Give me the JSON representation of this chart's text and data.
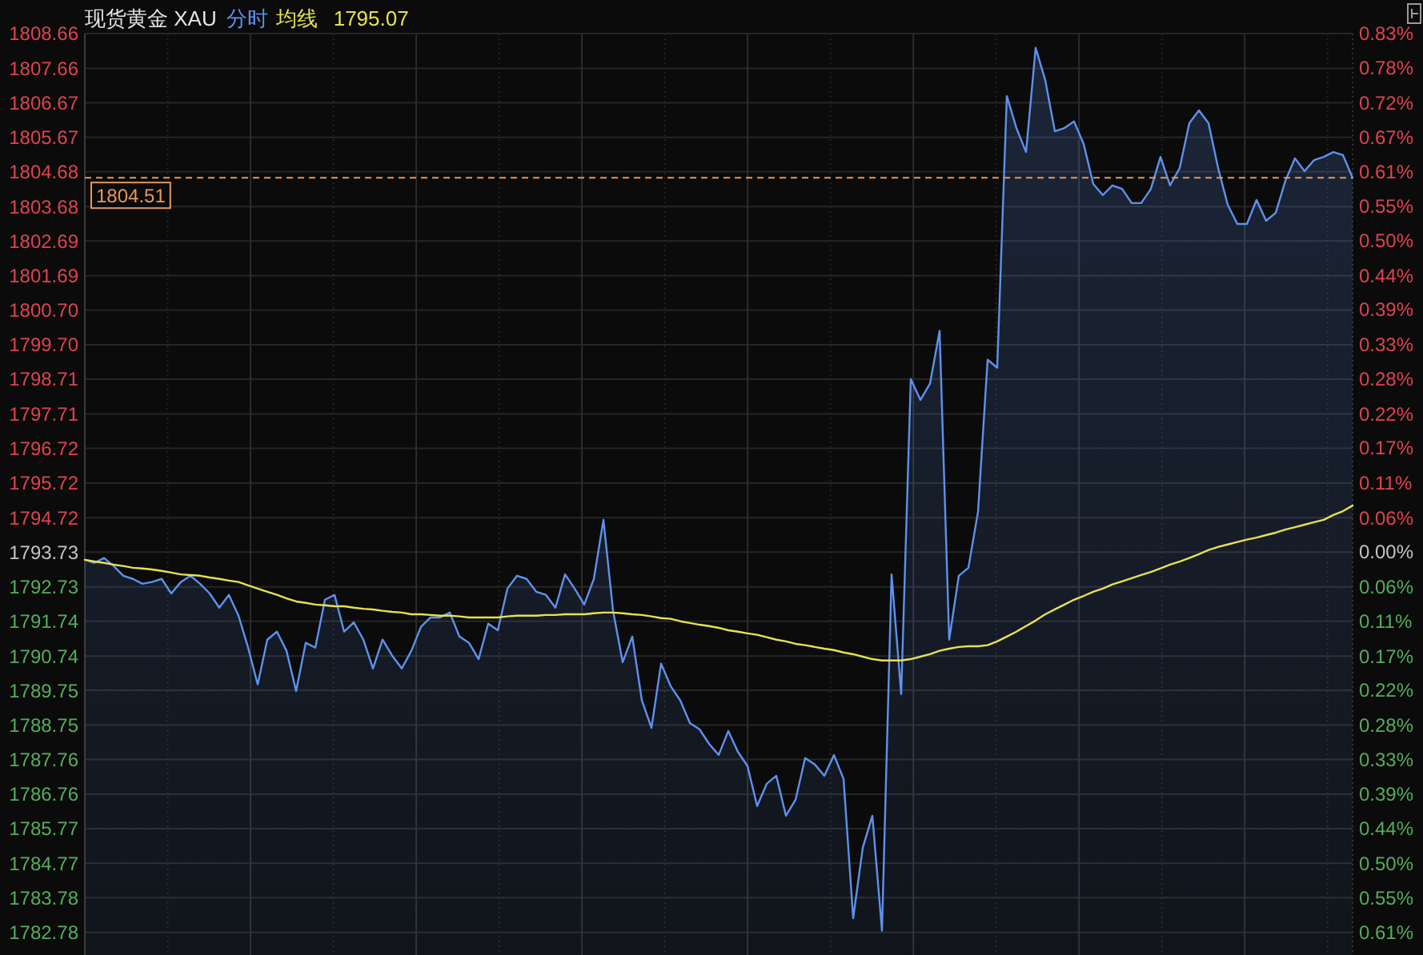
{
  "chart_data": {
    "type": "area",
    "title": "现货黄金 XAU",
    "categories": [
      null,
      null,
      null,
      null,
      null,
      null,
      null,
      null,
      null,
      null,
      null,
      null,
      null,
      null,
      null,
      null,
      null,
      null,
      null,
      null,
      null,
      null,
      null,
      null,
      null,
      null,
      null,
      null,
      null,
      null,
      null,
      null,
      null,
      null,
      null,
      null,
      null,
      null,
      null,
      null,
      null,
      null,
      null,
      null,
      null,
      null,
      null,
      null,
      null,
      null,
      null,
      null,
      null,
      null,
      null,
      null,
      null,
      null,
      null,
      null,
      null,
      null,
      null,
      null,
      null,
      null,
      null,
      null,
      null,
      null,
      null,
      null,
      null,
      null,
      null,
      null,
      null,
      null,
      null,
      null,
      null,
      null,
      null,
      null,
      null,
      null,
      null,
      null,
      null,
      null,
      null,
      null,
      null,
      null,
      null,
      null,
      null,
      null,
      null,
      null,
      null,
      null,
      null,
      null,
      null,
      null,
      null,
      null,
      null,
      null,
      null,
      null,
      null,
      null,
      null,
      null,
      null,
      null,
      null,
      null,
      null,
      null,
      null,
      null,
      null,
      null,
      null,
      null,
      null,
      null,
      null,
      null,
      null
    ],
    "series": [
      {
        "name": "分时",
        "type": "area",
        "color": "#5e92ee",
        "values": [
          1793.51,
          1793.42,
          1793.56,
          1793.33,
          1793.05,
          1792.96,
          1792.82,
          1792.87,
          1792.96,
          1792.54,
          1792.87,
          1793.05,
          1792.82,
          1792.54,
          1792.13,
          1792.5,
          1791.9,
          1790.98,
          1789.92,
          1791.21,
          1791.44,
          1790.89,
          1789.73,
          1791.12,
          1790.98,
          1792.36,
          1792.5,
          1791.44,
          1791.71,
          1791.21,
          1790.38,
          1791.21,
          1790.75,
          1790.38,
          1790.89,
          1791.58,
          1791.85,
          1791.85,
          1791.99,
          1791.3,
          1791.12,
          1790.65,
          1791.67,
          1791.48,
          1792.68,
          1793.05,
          1792.96,
          1792.59,
          1792.5,
          1792.13,
          1793.09,
          1792.68,
          1792.22,
          1792.96,
          1794.66,
          1792.04,
          1790.56,
          1791.3,
          1789.46,
          1788.67,
          1790.52,
          1789.87,
          1789.46,
          1788.81,
          1788.63,
          1788.21,
          1787.89,
          1788.58,
          1787.98,
          1787.57,
          1786.42,
          1787.06,
          1787.29,
          1786.14,
          1786.6,
          1787.8,
          1787.62,
          1787.29,
          1787.89,
          1787.2,
          1783.19,
          1785.22,
          1786.14,
          1782.83,
          1793.09,
          1789.64,
          1798.71,
          1798.11,
          1798.58,
          1800.1,
          1791.21,
          1793.05,
          1793.28,
          1794.89,
          1799.27,
          1799.04,
          1806.86,
          1805.94,
          1805.25,
          1808.25,
          1807.32,
          1805.85,
          1805.94,
          1806.13,
          1805.48,
          1804.33,
          1804.01,
          1804.29,
          1804.19,
          1803.78,
          1803.78,
          1804.19,
          1805.11,
          1804.29,
          1804.79,
          1806.08,
          1806.45,
          1806.08,
          1804.79,
          1803.73,
          1803.18,
          1803.18,
          1803.87,
          1803.27,
          1803.5,
          1804.42,
          1805.07,
          1804.7,
          1805.02,
          1805.11,
          1805.25,
          1805.16,
          1804.51
        ]
      },
      {
        "name": "均线",
        "type": "line",
        "color": "#e8e24e",
        "values": [
          1793.51,
          1793.46,
          1793.42,
          1793.37,
          1793.33,
          1793.28,
          1793.26,
          1793.23,
          1793.19,
          1793.14,
          1793.09,
          1793.07,
          1793.05,
          1793.0,
          1792.96,
          1792.91,
          1792.87,
          1792.77,
          1792.68,
          1792.59,
          1792.5,
          1792.4,
          1792.31,
          1792.27,
          1792.22,
          1792.2,
          1792.17,
          1792.17,
          1792.13,
          1792.1,
          1792.08,
          1792.04,
          1792.01,
          1791.99,
          1791.94,
          1791.94,
          1791.92,
          1791.9,
          1791.9,
          1791.88,
          1791.85,
          1791.85,
          1791.85,
          1791.85,
          1791.88,
          1791.9,
          1791.9,
          1791.9,
          1791.92,
          1791.92,
          1791.94,
          1791.94,
          1791.94,
          1791.97,
          1791.99,
          1791.99,
          1791.97,
          1791.94,
          1791.92,
          1791.88,
          1791.83,
          1791.81,
          1791.74,
          1791.69,
          1791.64,
          1791.6,
          1791.55,
          1791.48,
          1791.44,
          1791.39,
          1791.35,
          1791.28,
          1791.21,
          1791.16,
          1791.09,
          1791.05,
          1791.0,
          1790.95,
          1790.91,
          1790.84,
          1790.79,
          1790.72,
          1790.65,
          1790.61,
          1790.61,
          1790.61,
          1790.65,
          1790.72,
          1790.79,
          1790.89,
          1790.95,
          1791.0,
          1791.02,
          1791.02,
          1791.05,
          1791.16,
          1791.3,
          1791.44,
          1791.6,
          1791.76,
          1791.94,
          1792.08,
          1792.22,
          1792.36,
          1792.47,
          1792.59,
          1792.68,
          1792.8,
          1792.89,
          1792.98,
          1793.07,
          1793.16,
          1793.26,
          1793.37,
          1793.46,
          1793.56,
          1793.67,
          1793.79,
          1793.88,
          1793.95,
          1794.02,
          1794.09,
          1794.15,
          1794.22,
          1794.29,
          1794.38,
          1794.45,
          1794.52,
          1794.59,
          1794.66,
          1794.8,
          1794.91,
          1795.07
        ]
      }
    ],
    "annotations": [
      "1795.07"
    ],
    "ylim": [
      1782.13,
      1808.66
    ],
    "yticks": [
      1782.78,
      1783.78,
      1784.77,
      1785.77,
      1786.76,
      1787.76,
      1788.75,
      1789.75,
      1790.74,
      1791.74,
      1792.73,
      1793.73,
      1794.72,
      1795.72,
      1796.72,
      1797.71,
      1798.71,
      {
        "value": 1799.7,
        "label": "1799.70"
      },
      {
        "value": 1800.7,
        "label": "1800.70"
      },
      1801.69,
      1802.69,
      1803.68,
      1804.68,
      1805.67,
      1806.67,
      1807.66,
      1808.66
    ],
    "y2lim": [
      -0.647,
      0.832
    ],
    "y2ticks": [
      {
        "value": -0.611,
        "label": "0.61%"
      },
      {
        "value": -0.555,
        "label": "0.55%"
      },
      {
        "value": -0.5,
        "label": "0.50%"
      },
      {
        "value": -0.444,
        "label": "0.44%"
      },
      {
        "value": -0.389,
        "label": "0.39%"
      },
      {
        "value": -0.333,
        "label": "0.33%"
      },
      {
        "value": -0.278,
        "label": "0.28%"
      },
      {
        "value": -0.222,
        "label": "0.22%"
      },
      {
        "value": -0.167,
        "label": "0.17%"
      },
      {
        "value": -0.111,
        "label": "0.11%"
      },
      {
        "value": -0.056,
        "label": "0.06%"
      },
      {
        "value": 0,
        "label": "0.00%"
      },
      {
        "value": 0.055,
        "label": "0.06%"
      },
      {
        "value": 0.111,
        "label": "0.11%"
      },
      {
        "value": 0.167,
        "label": "0.17%"
      },
      {
        "value": 0.222,
        "label": "0.22%"
      },
      {
        "value": 0.278,
        "label": "0.28%"
      },
      {
        "value": 0.333,
        "label": "0.33%"
      },
      {
        "value": 0.389,
        "label": "0.39%"
      },
      {
        "value": 0.444,
        "label": "0.44%"
      },
      {
        "value": 0.5,
        "label": "0.50%"
      },
      {
        "value": 0.555,
        "label": "0.55%"
      },
      {
        "value": 0.611,
        "label": "0.61%"
      },
      {
        "value": 0.666,
        "label": "0.67%"
      },
      {
        "value": 0.721,
        "label": "0.72%"
      },
      {
        "value": 0.777,
        "label": "0.78%"
      },
      {
        "value": 0.832,
        "label": "0.83%"
      }
    ],
    "ref_lines": [
      {
        "axis": "y",
        "value": 1804.51,
        "label": "1804.51",
        "color": "#e8985a",
        "line_style": "dashed"
      }
    ],
    "grid": true,
    "legend": "top left"
  }
}
